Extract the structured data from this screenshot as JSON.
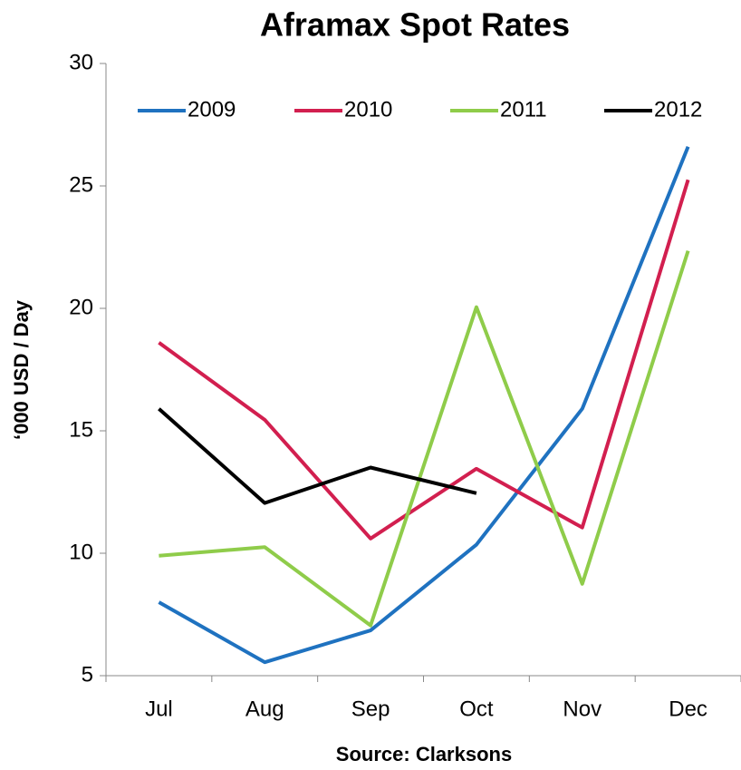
{
  "chart_data": {
    "type": "line",
    "title": "Aframax Spot Rates",
    "y_label": "‘000 USD / Day",
    "x_label": "Source: Clarksons",
    "categories": [
      "Jul",
      "Aug",
      "Sep",
      "Oct",
      "Nov",
      "Dec"
    ],
    "series": [
      {
        "name": "2009",
        "color": "#1f72c0",
        "values": [
          8.0,
          5.55,
          6.85,
          10.35,
          15.9,
          26.6
        ]
      },
      {
        "name": "2010",
        "color": "#d21f4f",
        "values": [
          18.6,
          15.45,
          10.6,
          13.45,
          11.05,
          25.25
        ]
      },
      {
        "name": "2011",
        "color": "#8fcc4a",
        "values": [
          9.9,
          10.25,
          7.05,
          20.05,
          8.75,
          22.35
        ]
      },
      {
        "name": "2012",
        "color": "#000000",
        "values": [
          15.9,
          12.05,
          13.5,
          12.45,
          null,
          null
        ]
      }
    ],
    "ylim": [
      5,
      30
    ],
    "yticks": [
      5,
      10,
      15,
      20,
      25,
      30
    ],
    "grid": false,
    "legend": "top"
  }
}
